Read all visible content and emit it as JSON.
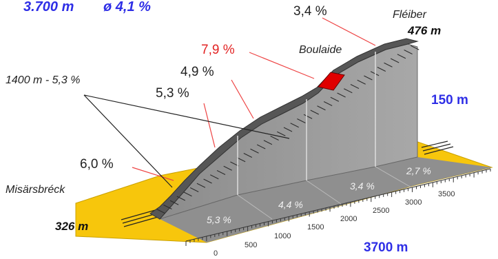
{
  "header": {
    "distance": "3.700 m",
    "avg_gradient": "ø 4,1 %"
  },
  "labels": {
    "start_name": "Misärsbréck",
    "start_altitude": "326 m",
    "end_name": "Fléiber",
    "end_altitude": "476 m",
    "midpoint_name": "Boulaide",
    "elevation_gain": "150 m",
    "total_length": "3700 m",
    "section_callout": "1400 m - 5,3 %"
  },
  "gradient_callouts": [
    "6,0 %",
    "5,3 %",
    "4,9 %",
    "7,9 %",
    "3,4 %"
  ],
  "segment_gradients": [
    "5,3 %",
    "4,4 %",
    "3,4 %",
    "2,7 %"
  ],
  "axis_ticks": [
    "0",
    "500",
    "1000",
    "1500",
    "2000",
    "2500",
    "3000",
    "3500"
  ],
  "colors": {
    "ground": "#f7c60c",
    "profile_face": "#9c9c9c",
    "profile_top": "#555555",
    "steep_segment": "#e00000",
    "blue_text": "#2e2ee6",
    "red_text": "#e22222"
  }
}
